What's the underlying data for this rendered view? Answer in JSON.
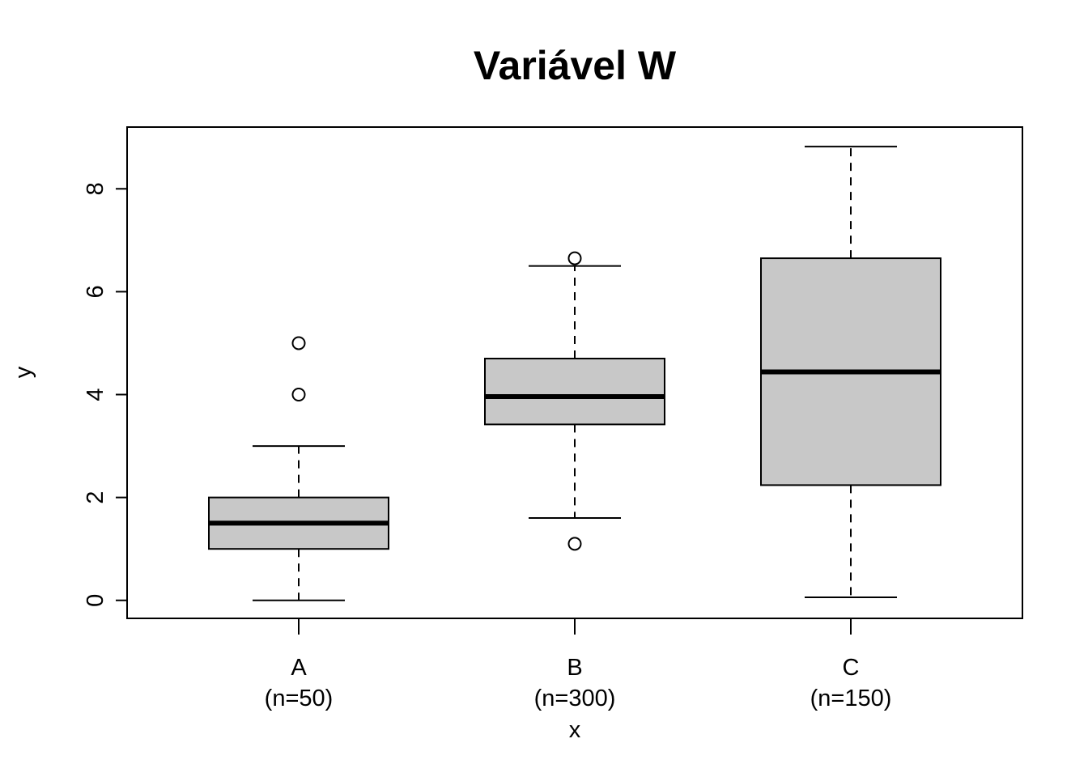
{
  "chart_data": {
    "type": "boxplot",
    "title": "Variável W",
    "xlabel": "x",
    "ylabel": "y",
    "ylim": [
      -0.35,
      9.2
    ],
    "yticks": [
      0,
      2,
      4,
      6,
      8
    ],
    "grid": false,
    "colors": {
      "box_fill": "#c8c8c8",
      "stroke": "#000000",
      "background": "#ffffff"
    },
    "categories": [
      {
        "name": "A",
        "n_label": "(n=50)",
        "whisker_low": 0.0,
        "q1": 1.0,
        "median": 1.5,
        "q3": 2.0,
        "whisker_high": 3.0,
        "outliers": [
          4.0,
          5.0
        ]
      },
      {
        "name": "B",
        "n_label": "(n=300)",
        "whisker_low": 1.6,
        "q1": 3.42,
        "median": 3.96,
        "q3": 4.7,
        "whisker_high": 6.5,
        "outliers": [
          1.1,
          6.65
        ]
      },
      {
        "name": "C",
        "n_label": "(n=150)",
        "whisker_low": 0.06,
        "q1": 2.24,
        "median": 4.44,
        "q3": 6.65,
        "whisker_high": 8.82,
        "outliers": []
      }
    ]
  }
}
